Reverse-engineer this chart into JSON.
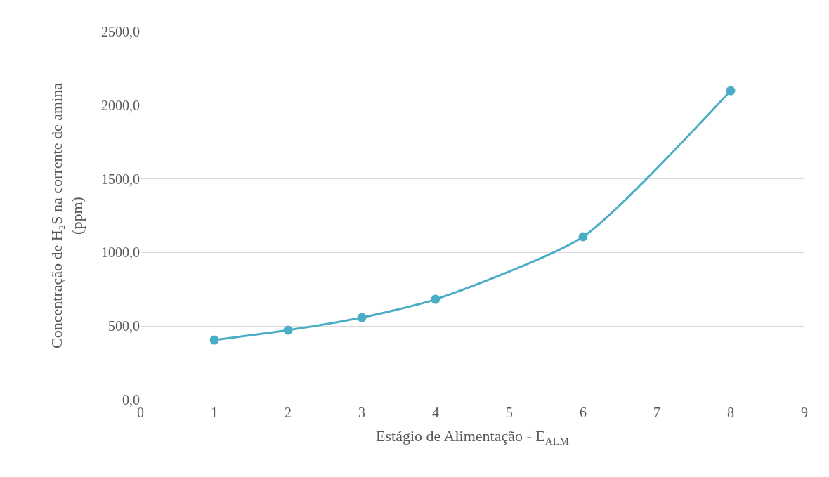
{
  "chart_data": {
    "type": "line",
    "xlabel": "Estágio de Alimentação - E$_{ALM}$",
    "ylabel": "Concentração de H₂S na corrente de amina\n(ppm)",
    "x": [
      1,
      2,
      3,
      4,
      6,
      8
    ],
    "series": [
      {
        "color": "#4bacc6",
        "values": [
          405,
          472,
          558,
          682,
          1107,
          2099
        ]
      }
    ],
    "xlim": [
      0,
      9
    ],
    "xticks": [
      0,
      1,
      2,
      3,
      4,
      5,
      6,
      7,
      8,
      9
    ],
    "ylim": [
      0,
      2500
    ],
    "yticks": [
      {
        "value": 0,
        "label": "0,0"
      },
      {
        "value": 500,
        "label": "500,0"
      },
      {
        "value": 1000,
        "label": "1000,0"
      },
      {
        "value": 1500,
        "label": "1500,0"
      },
      {
        "value": 2000,
        "label": "2000,0"
      },
      {
        "value": 2500,
        "label": "2500,0"
      }
    ],
    "grid": "y",
    "marker": "circle",
    "line_style": "solid",
    "legend": false
  }
}
